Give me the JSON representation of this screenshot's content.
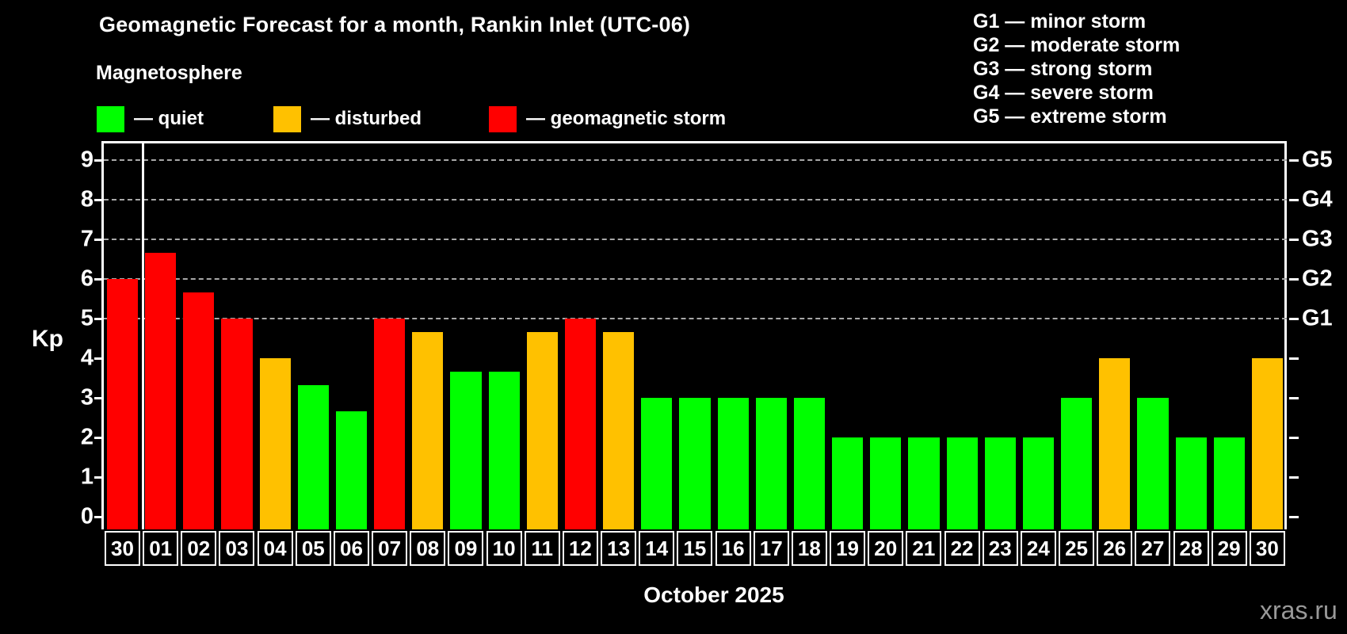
{
  "header": {
    "title": "Geomagnetic Forecast for a month, Rankin Inlet (UTC-06)",
    "subtitle": "Magnetosphere"
  },
  "legend": {
    "items": [
      {
        "name": "quiet",
        "label": "— quiet",
        "color": "#00ff00"
      },
      {
        "name": "disturbed",
        "label": "— disturbed",
        "color": "#ffc100"
      },
      {
        "name": "storm",
        "label": "— geomagnetic storm",
        "color": "#ff0000"
      }
    ]
  },
  "g_scale_legend": {
    "items": [
      {
        "text": "G1 — minor storm"
      },
      {
        "text": "G2 — moderate storm"
      },
      {
        "text": "G3 — strong storm"
      },
      {
        "text": "G4 — severe storm"
      },
      {
        "text": "G5 — extreme storm"
      }
    ]
  },
  "chart_data": {
    "type": "bar",
    "title": "Geomagnetic Forecast for a month, Rankin Inlet (UTC-06)",
    "subtitle": "Magnetosphere",
    "ylabel": "Kp",
    "xlabel": "October 2025",
    "ylim": [
      0,
      9
    ],
    "yticks": [
      0,
      1,
      2,
      3,
      4,
      5,
      6,
      7,
      8,
      9
    ],
    "gridline_levels": [
      5,
      6,
      7,
      8,
      9
    ],
    "grid_style": "horizontal dashed gray at G-storm levels only",
    "legend_position": "top",
    "month_separator_after_index": 0,
    "categories": [
      "30",
      "01",
      "02",
      "03",
      "04",
      "05",
      "06",
      "07",
      "08",
      "09",
      "10",
      "11",
      "12",
      "13",
      "14",
      "15",
      "16",
      "17",
      "18",
      "19",
      "20",
      "21",
      "22",
      "23",
      "24",
      "25",
      "26",
      "27",
      "28",
      "29",
      "30"
    ],
    "values": [
      6.0,
      6.67,
      5.67,
      5.0,
      4.0,
      3.33,
      2.67,
      5.0,
      4.67,
      3.67,
      3.67,
      4.67,
      5.0,
      4.67,
      3.0,
      3.0,
      3.0,
      3.0,
      3.0,
      2.0,
      2.0,
      2.0,
      2.0,
      2.0,
      2.0,
      3.0,
      4.0,
      3.0,
      2.0,
      2.0,
      4.0
    ],
    "statuses": [
      "storm",
      "storm",
      "storm",
      "storm",
      "disturbed",
      "quiet",
      "quiet",
      "storm",
      "disturbed",
      "quiet",
      "quiet",
      "disturbed",
      "storm",
      "disturbed",
      "quiet",
      "quiet",
      "quiet",
      "quiet",
      "quiet",
      "quiet",
      "quiet",
      "quiet",
      "quiet",
      "quiet",
      "quiet",
      "quiet",
      "disturbed",
      "quiet",
      "quiet",
      "quiet",
      "disturbed"
    ],
    "status_colors": {
      "quiet": "#00ff00",
      "disturbed": "#ffc100",
      "storm": "#ff0000"
    },
    "right_axis": {
      "labels": [
        {
          "text": "G1",
          "kp": 5
        },
        {
          "text": "G2",
          "kp": 6
        },
        {
          "text": "G3",
          "kp": 7
        },
        {
          "text": "G4",
          "kp": 8
        },
        {
          "text": "G5",
          "kp": 9
        }
      ]
    }
  },
  "footer": {
    "watermark": "xras.ru"
  }
}
